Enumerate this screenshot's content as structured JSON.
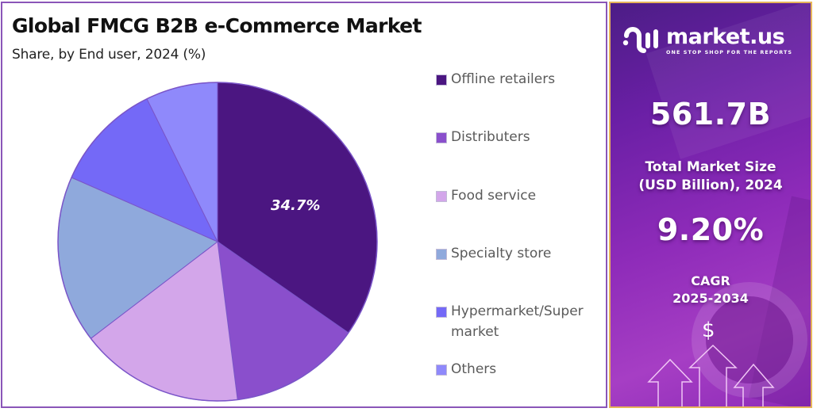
{
  "header": {
    "title": "Global FMCG B2B e-Commerce Market",
    "subtitle": "Share, by End user, 2024 (%)"
  },
  "chart_data": {
    "type": "pie",
    "title": "Global FMCG B2B e-Commerce Market",
    "subtitle": "Share, by End user, 2024 (%)",
    "categories": [
      "Offline retailers",
      "Distributers",
      "Food service",
      "Specialty store",
      "Hypermarket/Super market",
      "Others"
    ],
    "values": [
      34.7,
      13.3,
      16.6,
      17.0,
      11.1,
      7.3
    ],
    "colors": [
      "#4b1681",
      "#8a4fcc",
      "#d3a6ea",
      "#8fa9dc",
      "#7469f7",
      "#8f89fb"
    ],
    "data_labels": [
      {
        "category": "Offline retailers",
        "text": "34.7%"
      }
    ],
    "start_angle_deg": 0,
    "direction": "clockwise",
    "legend_position": "right"
  },
  "legend": {
    "items": [
      {
        "label": "Offline retailers",
        "color": "#4b1681"
      },
      {
        "label": "Distributers",
        "color": "#8a4fcc"
      },
      {
        "label": "Food service",
        "color": "#d3a6ea"
      },
      {
        "label": "Specialty store",
        "color": "#8fa9dc"
      },
      {
        "label": "Hypermarket/Super market",
        "color": "#7469f7"
      },
      {
        "label": "Others",
        "color": "#8f89fb"
      }
    ]
  },
  "pie_label": "34.7%",
  "side_panel": {
    "brand": "market.us",
    "tagline": "ONE STOP SHOP FOR THE REPORTS",
    "market_size_value": "561.7B",
    "market_size_label_1": "Total Market Size",
    "market_size_label_2": "(USD Billion), 2024",
    "cagr_value": "9.20%",
    "cagr_label_1": "CAGR",
    "cagr_label_2": "2025-2034",
    "dollar_symbol": "$"
  }
}
